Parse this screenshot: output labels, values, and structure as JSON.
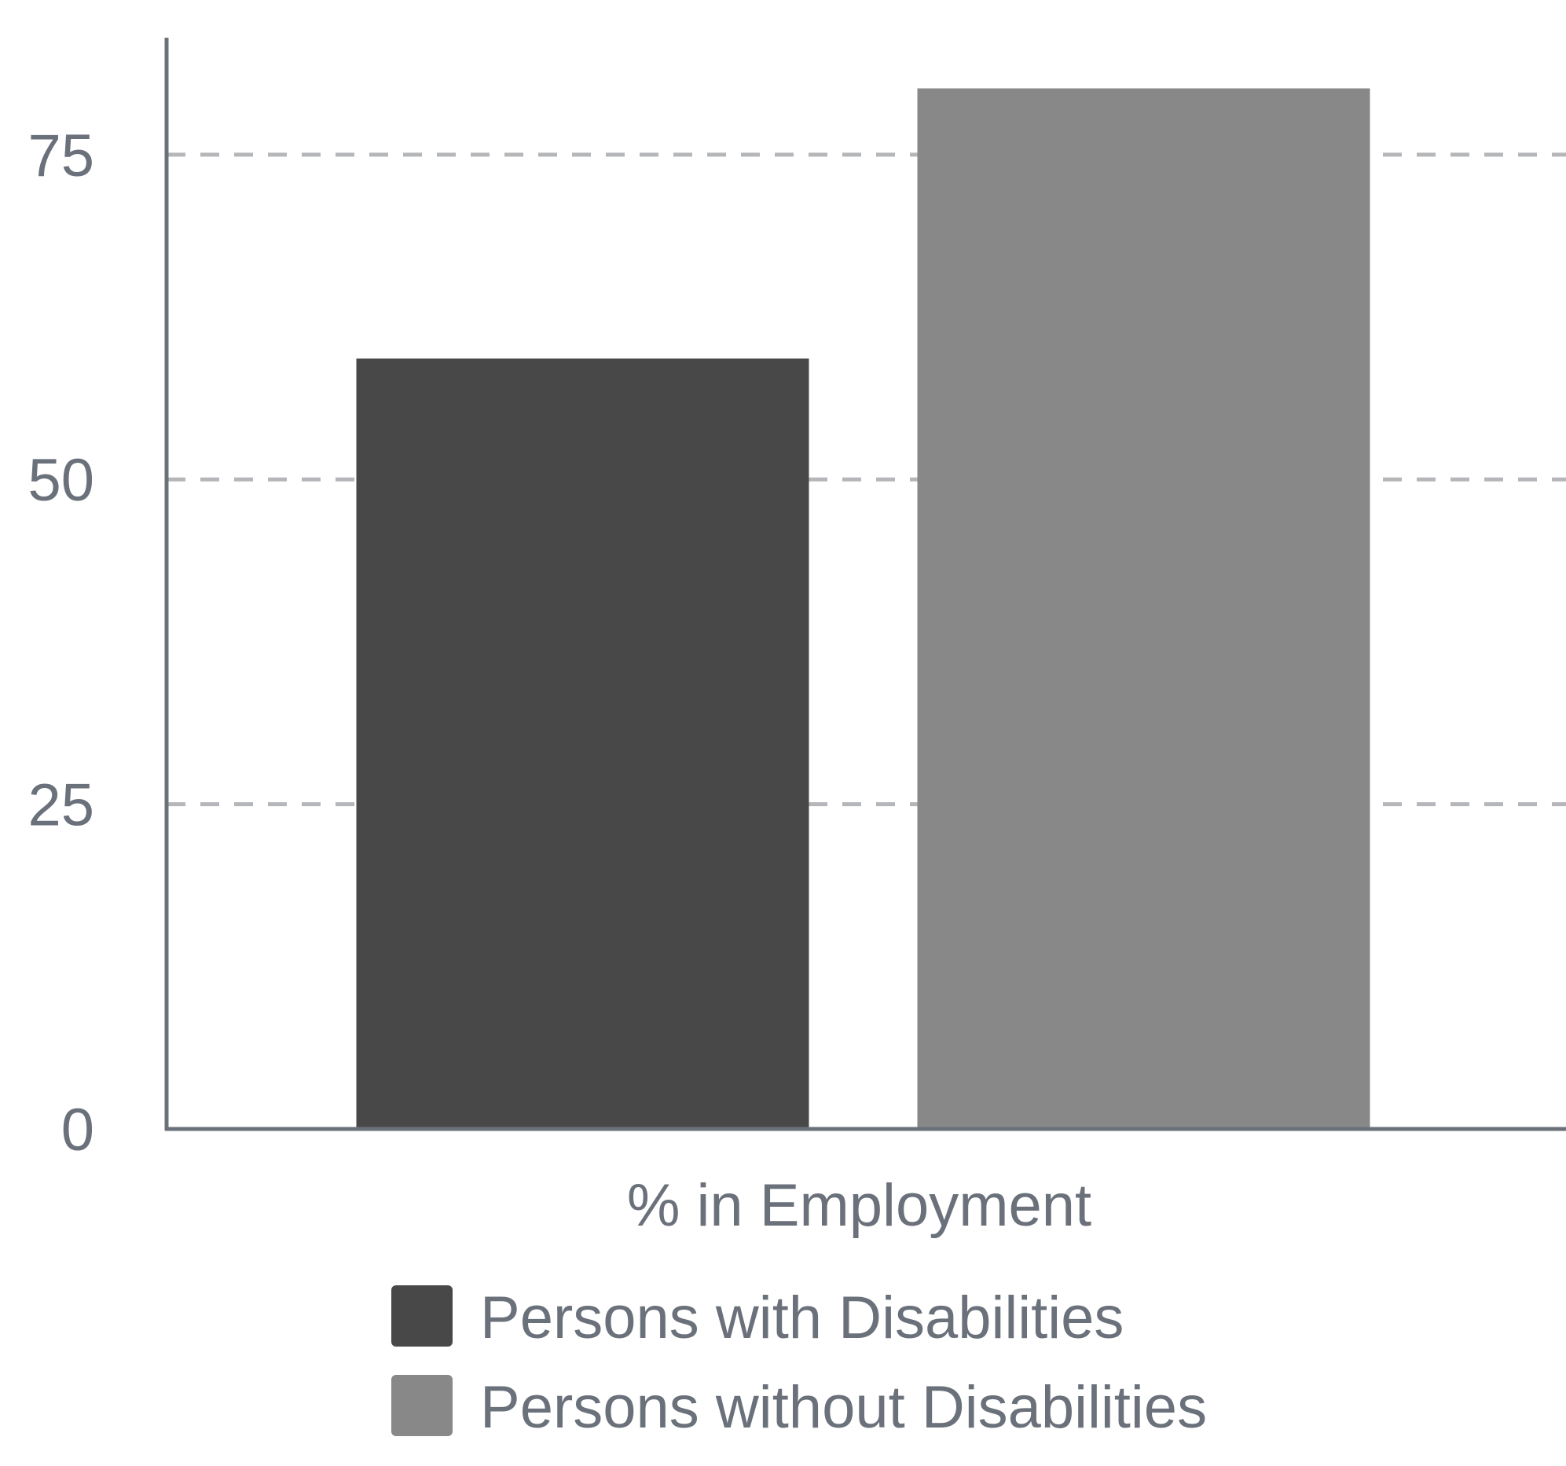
{
  "chart_data": {
    "type": "bar",
    "title": "",
    "xlabel": "",
    "ylabel": "",
    "categories": [
      "% in Employment"
    ],
    "series": [
      {
        "name": "Persons with Disabilities",
        "values": [
          59.3
        ],
        "color": "#484848"
      },
      {
        "name": "Persons without Disabilities",
        "values": [
          80.1
        ],
        "color": "#888888"
      }
    ],
    "ylim": [
      0,
      84
    ],
    "yticks": [
      0,
      25,
      50,
      75
    ],
    "grid": true,
    "legend_position": "bottom"
  },
  "colors": {
    "axis": "#6b717b",
    "grid": "#b4b6b9",
    "text": "#6b717b"
  }
}
